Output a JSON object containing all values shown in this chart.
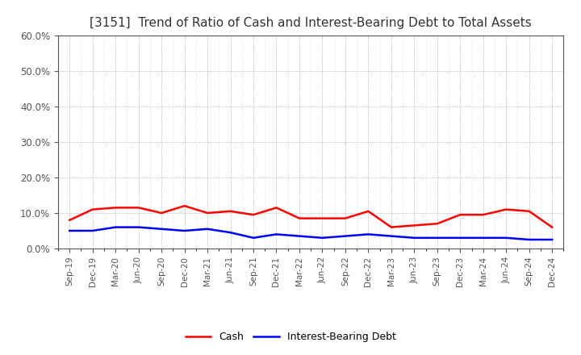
{
  "title": "[3151]  Trend of Ratio of Cash and Interest-Bearing Debt to Total Assets",
  "x_labels": [
    "Sep-19",
    "Dec-19",
    "Mar-20",
    "Jun-20",
    "Sep-20",
    "Dec-20",
    "Mar-21",
    "Jun-21",
    "Sep-21",
    "Dec-21",
    "Mar-22",
    "Jun-22",
    "Sep-22",
    "Dec-22",
    "Mar-23",
    "Jun-23",
    "Sep-23",
    "Dec-23",
    "Mar-24",
    "Jun-24",
    "Sep-24",
    "Dec-24"
  ],
  "cash": [
    8.0,
    11.0,
    11.5,
    11.5,
    10.0,
    12.0,
    10.0,
    10.5,
    9.5,
    11.5,
    8.5,
    8.5,
    8.5,
    10.5,
    6.0,
    6.5,
    7.0,
    9.5,
    9.5,
    11.0,
    10.5,
    6.0
  ],
  "ibd": [
    5.0,
    5.0,
    6.0,
    6.0,
    5.5,
    5.0,
    5.5,
    4.5,
    3.0,
    4.0,
    3.5,
    3.0,
    3.5,
    4.0,
    3.5,
    3.0,
    3.0,
    3.0,
    3.0,
    3.0,
    2.5,
    2.5
  ],
  "cash_color": "#ff0000",
  "ibd_color": "#0000ff",
  "ylim": [
    0,
    60
  ],
  "yticks": [
    0,
    10,
    20,
    30,
    40,
    50,
    60
  ],
  "background_color": "#ffffff",
  "grid_color": "#888888",
  "legend_cash": "Cash",
  "legend_ibd": "Interest-Bearing Debt",
  "title_color": "#333333"
}
